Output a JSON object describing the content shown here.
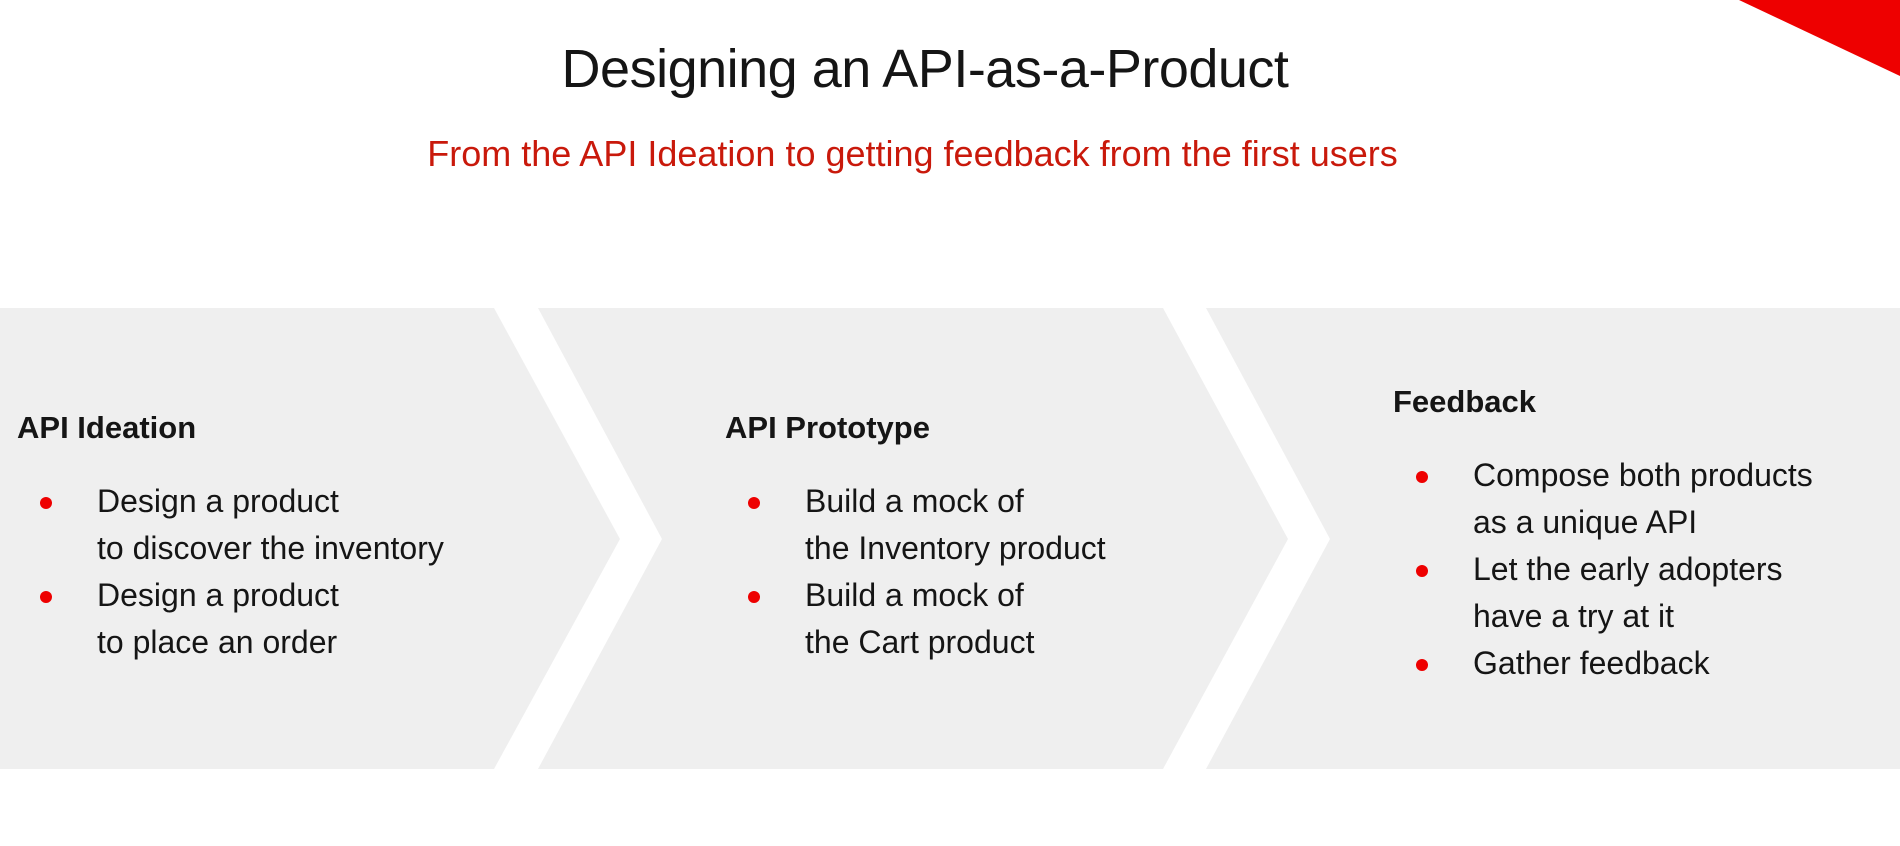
{
  "title": "Designing an API-as-a-Product",
  "subtitle": "From the API Ideation to getting feedback from the first users",
  "colors": {
    "accent": "#ee0000",
    "subtitle": "#c9190b",
    "panel": "#efefef",
    "text": "#151515"
  },
  "stages": [
    {
      "heading": "API Ideation",
      "items": [
        {
          "lines": [
            "Design a product",
            "to discover the inventory"
          ]
        },
        {
          "lines": [
            "Design a product",
            "to place an order"
          ]
        }
      ]
    },
    {
      "heading": "API Prototype",
      "items": [
        {
          "lines": [
            "Build a mock of",
            "the Inventory product"
          ]
        },
        {
          "lines": [
            "Build a mock of",
            "the Cart product"
          ]
        }
      ]
    },
    {
      "heading": "Feedback",
      "items": [
        {
          "lines": [
            "Compose both products",
            "as a unique API"
          ]
        },
        {
          "lines": [
            "Let the early adopters",
            "have a try at it"
          ]
        },
        {
          "lines": [
            "Gather feedback"
          ]
        }
      ]
    }
  ]
}
